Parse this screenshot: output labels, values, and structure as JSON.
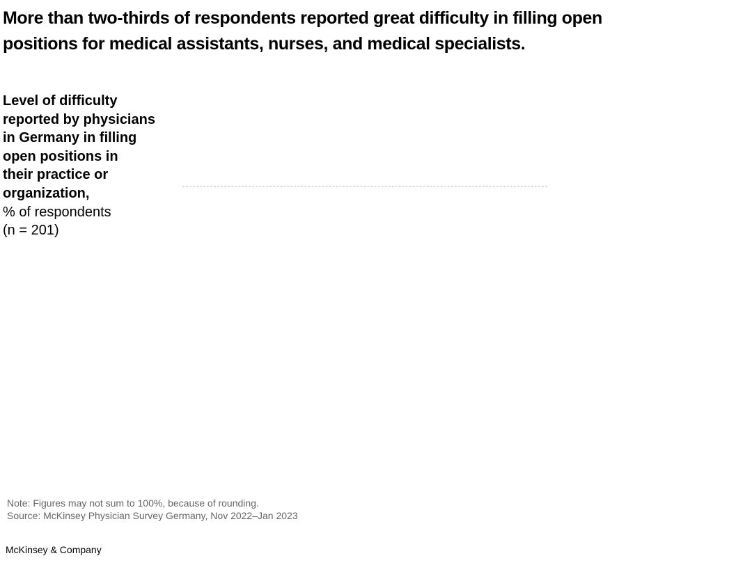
{
  "header": {
    "title_lines": [
      "More than two-thirds of respondents reported great difficulty in filling open",
      "positions for medical assistants, nurses, and medical specialists."
    ]
  },
  "subtitle": {
    "bold_lines": [
      "Level of difficulty",
      "reported by physicians",
      "in Germany in filling",
      "open positions in",
      "their practice or",
      "organization,"
    ],
    "regular_lines": [
      "% of respondents",
      "(n = 201)"
    ]
  },
  "footer": {
    "note": "Note: Figures may not sum to 100%, because of rounding.",
    "source": "Source: McKinsey Physician Survey Germany, Nov 2022–Jan 2023",
    "brand": "McKinsey & Company"
  }
}
